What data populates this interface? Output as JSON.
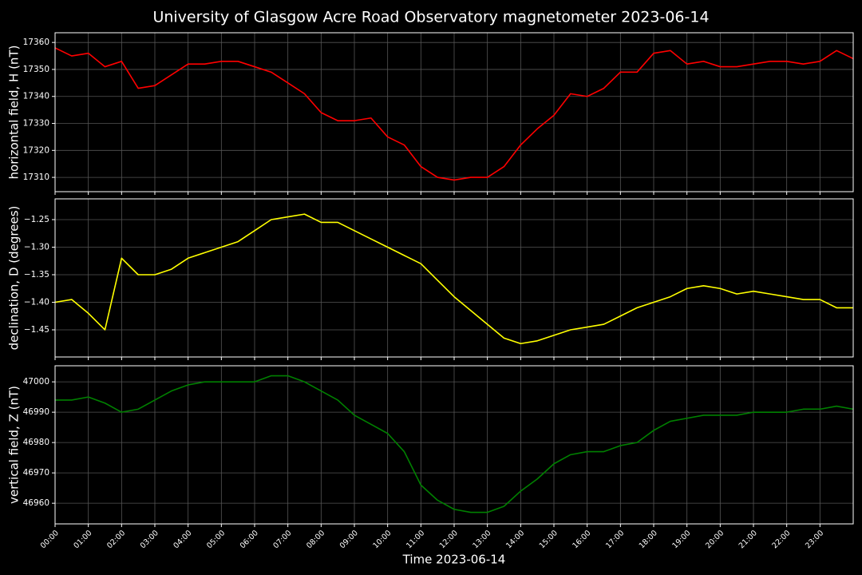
{
  "title": "University of Glasgow Acre Road Observatory magnetometer 2023-06-14",
  "x_label": "Time 2023-06-14",
  "chart_data": [
    {
      "type": "line",
      "y_label": "horizontal field, H (nT)",
      "color": "#ff0000",
      "grid": true,
      "xlim": [
        0,
        24
      ],
      "ylim": [
        17304.7,
        17363.6
      ],
      "yticks": [
        17310,
        17320,
        17330,
        17340,
        17350,
        17360
      ],
      "x": [
        0,
        0.5,
        1,
        1.5,
        2,
        2.5,
        3,
        3.5,
        4,
        4.5,
        5,
        5.5,
        6,
        6.5,
        7,
        7.5,
        8,
        8.5,
        9,
        9.5,
        10,
        10.5,
        11,
        11.5,
        12,
        12.5,
        13,
        13.5,
        14,
        14.5,
        15,
        15.5,
        16,
        16.5,
        17,
        17.5,
        18,
        18.5,
        19,
        19.5,
        20,
        20.5,
        21,
        21.5,
        22,
        22.5,
        23,
        23.5,
        24
      ],
      "values": [
        17358,
        17355,
        17356,
        17351,
        17353,
        17343,
        17344,
        17348,
        17352,
        17352,
        17353,
        17353,
        17351,
        17349,
        17345,
        17341,
        17334,
        17331,
        17331,
        17332,
        17325,
        17322,
        17314,
        17310,
        17309,
        17310,
        17310,
        17314,
        17322,
        17328,
        17333,
        17341,
        17340,
        17343,
        17349,
        17349,
        17356,
        17357,
        17352,
        17353,
        17351,
        17351,
        17352,
        17353,
        17353,
        17352,
        17353,
        17357,
        17354
      ]
    },
    {
      "type": "line",
      "y_label": "declination, D (degrees)",
      "color": "#ffff00",
      "grid": true,
      "xlim": [
        0,
        24
      ],
      "ylim": [
        -1.4993,
        -1.2123
      ],
      "yticks": [
        {
          "value": -1.45,
          "label": "−1.45"
        },
        {
          "value": -1.4,
          "label": "−1.40"
        },
        {
          "value": -1.35,
          "label": "−1.35"
        },
        {
          "value": -1.3,
          "label": "−1.30"
        },
        {
          "value": -1.25,
          "label": "−1.25"
        }
      ],
      "x": [
        0,
        0.5,
        1,
        1.5,
        2,
        2.5,
        3,
        3.5,
        4,
        4.5,
        5,
        5.5,
        6,
        6.5,
        7,
        7.5,
        8,
        8.5,
        9,
        9.5,
        10,
        10.5,
        11,
        11.5,
        12,
        12.5,
        13,
        13.5,
        14,
        14.5,
        15,
        15.5,
        16,
        16.5,
        17,
        17.5,
        18,
        18.5,
        19,
        19.5,
        20,
        20.5,
        21,
        21.5,
        22,
        22.5,
        23,
        23.5,
        24
      ],
      "values": [
        -1.4,
        -1.395,
        -1.42,
        -1.45,
        -1.32,
        -1.35,
        -1.35,
        -1.34,
        -1.32,
        -1.31,
        -1.3,
        -1.29,
        -1.27,
        -1.25,
        -1.245,
        -1.24,
        -1.255,
        -1.255,
        -1.27,
        -1.285,
        -1.3,
        -1.315,
        -1.33,
        -1.36,
        -1.39,
        -1.415,
        -1.44,
        -1.465,
        -1.475,
        -1.47,
        -1.46,
        -1.45,
        -1.445,
        -1.44,
        -1.425,
        -1.41,
        -1.4,
        -1.39,
        -1.375,
        -1.37,
        -1.375,
        -1.385,
        -1.38,
        -1.385,
        -1.39,
        -1.395,
        -1.395,
        -1.41,
        -1.41
      ]
    },
    {
      "type": "line",
      "y_label": "vertical field, Z (nT)",
      "color": "#008000",
      "grid": true,
      "xlim": [
        0,
        24
      ],
      "ylim": [
        46953.2,
        47005.3
      ],
      "yticks": [
        46960,
        46970,
        46980,
        46990,
        47000
      ],
      "xticks": [
        {
          "value": 0,
          "label": "00:00"
        },
        {
          "value": 1,
          "label": "01:00"
        },
        {
          "value": 2,
          "label": "02:00"
        },
        {
          "value": 3,
          "label": "03:00"
        },
        {
          "value": 4,
          "label": "04:00"
        },
        {
          "value": 5,
          "label": "05:00"
        },
        {
          "value": 6,
          "label": "06:00"
        },
        {
          "value": 7,
          "label": "07:00"
        },
        {
          "value": 8,
          "label": "08:00"
        },
        {
          "value": 9,
          "label": "09:00"
        },
        {
          "value": 10,
          "label": "10:00"
        },
        {
          "value": 11,
          "label": "11:00"
        },
        {
          "value": 12,
          "label": "12:00"
        },
        {
          "value": 13,
          "label": "13:00"
        },
        {
          "value": 14,
          "label": "14:00"
        },
        {
          "value": 15,
          "label": "15:00"
        },
        {
          "value": 16,
          "label": "16:00"
        },
        {
          "value": 17,
          "label": "17:00"
        },
        {
          "value": 18,
          "label": "18:00"
        },
        {
          "value": 19,
          "label": "19:00"
        },
        {
          "value": 20,
          "label": "20:00"
        },
        {
          "value": 21,
          "label": "21:00"
        },
        {
          "value": 22,
          "label": "22:00"
        },
        {
          "value": 23,
          "label": "23:00"
        }
      ],
      "x": [
        0,
        0.5,
        1,
        1.5,
        2,
        2.5,
        3,
        3.5,
        4,
        4.5,
        5,
        5.5,
        6,
        6.5,
        7,
        7.5,
        8,
        8.5,
        9,
        9.5,
        10,
        10.5,
        11,
        11.5,
        12,
        12.5,
        13,
        13.5,
        14,
        14.5,
        15,
        15.5,
        16,
        16.5,
        17,
        17.5,
        18,
        18.5,
        19,
        19.5,
        20,
        20.5,
        21,
        21.5,
        22,
        22.5,
        23,
        23.5,
        24
      ],
      "values": [
        46994,
        46994,
        46995,
        46993,
        46990,
        46991,
        46994,
        46997,
        46999,
        47000,
        47000,
        47000,
        47000,
        47002,
        47002,
        47000,
        46997,
        46994,
        46989,
        46986,
        46983,
        46977,
        46966,
        46961,
        46958,
        46957,
        46957,
        46959,
        46964,
        46968,
        46973,
        46976,
        46977,
        46977,
        46979,
        46980,
        46984,
        46987,
        46988,
        46989,
        46989,
        46989,
        46990,
        46990,
        46990,
        46991,
        46991,
        46992,
        46991
      ]
    }
  ]
}
